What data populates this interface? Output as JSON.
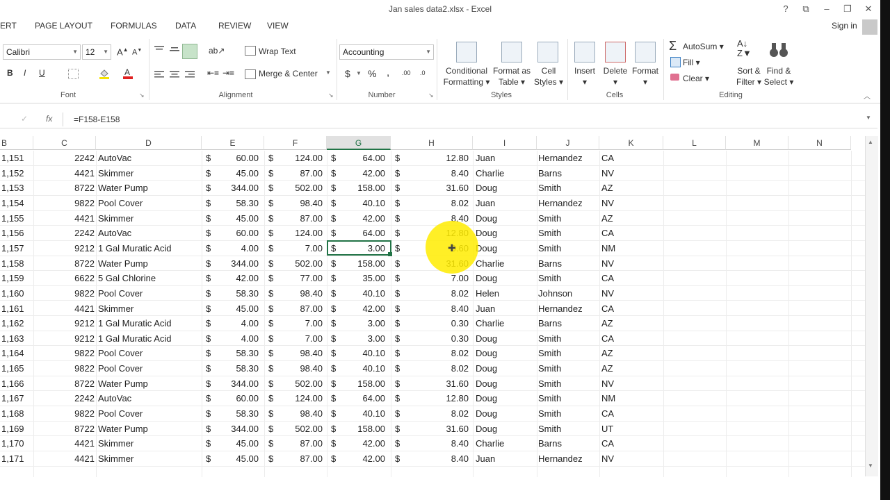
{
  "window": {
    "title": "Jan sales data2.xlsx - Excel",
    "help": "?",
    "ribbon_display": "⧉",
    "minimize": "–",
    "restore": "❐",
    "close": "✕"
  },
  "tabs": [
    "ERT",
    "PAGE LAYOUT",
    "FORMULAS",
    "DATA",
    "REVIEW",
    "VIEW"
  ],
  "signin": "Sign in",
  "font": {
    "name": "Calibri",
    "size": "12",
    "grow": "A",
    "shrink": "A",
    "bold": "B",
    "italic": "I",
    "underline": "U",
    "group_label": "Font"
  },
  "alignment": {
    "wrap_text": "Wrap Text",
    "merge_center": "Merge & Center",
    "group_label": "Alignment"
  },
  "number": {
    "format": "Accounting",
    "currency": "$",
    "percent": "%",
    "comma": ",",
    "inc_dec": ".00",
    "dec_dec": ".0",
    "group_label": "Number"
  },
  "styles": {
    "conditional_1": "Conditional",
    "conditional_2": "Formatting",
    "format_table_1": "Format as",
    "format_table_2": "Table",
    "cell_styles_1": "Cell",
    "cell_styles_2": "Styles",
    "group_label": "Styles"
  },
  "cells": {
    "insert": "Insert",
    "delete": "Delete",
    "format": "Format",
    "group_label": "Cells"
  },
  "editing": {
    "autosum": "AutoSum",
    "fill": "Fill",
    "clear": "Clear",
    "sort_1": "Sort &",
    "sort_2": "Filter",
    "find_1": "Find &",
    "find_2": "Select",
    "group_label": "Editing"
  },
  "formula_bar": {
    "fx": "fx",
    "formula": "=F158-E158"
  },
  "columns": [
    "B",
    "C",
    "D",
    "E",
    "F",
    "G",
    "H",
    "I",
    "J",
    "K",
    "L",
    "M",
    "N"
  ],
  "selected_column": "G",
  "rows": [
    {
      "b": "1,151",
      "c": "2242",
      "d": "AutoVac",
      "e": "60.00",
      "f": "124.00",
      "g": "64.00",
      "h": "12.80",
      "i": "Juan",
      "j": "Hernandez",
      "k": "CA"
    },
    {
      "b": "1,152",
      "c": "4421",
      "d": "Skimmer",
      "e": "45.00",
      "f": "87.00",
      "g": "42.00",
      "h": "8.40",
      "i": "Charlie",
      "j": "Barns",
      "k": "NV"
    },
    {
      "b": "1,153",
      "c": "8722",
      "d": "Water Pump",
      "e": "344.00",
      "f": "502.00",
      "g": "158.00",
      "h": "31.60",
      "i": "Doug",
      "j": "Smith",
      "k": "AZ"
    },
    {
      "b": "1,154",
      "c": "9822",
      "d": "Pool Cover",
      "e": "58.30",
      "f": "98.40",
      "g": "40.10",
      "h": "8.02",
      "i": "Juan",
      "j": "Hernandez",
      "k": "NV"
    },
    {
      "b": "1,155",
      "c": "4421",
      "d": "Skimmer",
      "e": "45.00",
      "f": "87.00",
      "g": "42.00",
      "h": "8.40",
      "i": "Doug",
      "j": "Smith",
      "k": "AZ"
    },
    {
      "b": "1,156",
      "c": "2242",
      "d": "AutoVac",
      "e": "60.00",
      "f": "124.00",
      "g": "64.00",
      "h": "12.80",
      "i": "Doug",
      "j": "Smith",
      "k": "CA"
    },
    {
      "b": "1,157",
      "c": "9212",
      "d": "1 Gal Muratic Acid",
      "e": "4.00",
      "f": "7.00",
      "g": "3.00",
      "h": "0.60",
      "i": "Doug",
      "j": "Smith",
      "k": "NM"
    },
    {
      "b": "1,158",
      "c": "8722",
      "d": "Water Pump",
      "e": "344.00",
      "f": "502.00",
      "g": "158.00",
      "h": "31.60",
      "i": "Charlie",
      "j": "Barns",
      "k": "NV"
    },
    {
      "b": "1,159",
      "c": "6622",
      "d": "5 Gal Chlorine",
      "e": "42.00",
      "f": "77.00",
      "g": "35.00",
      "h": "7.00",
      "i": "Doug",
      "j": "Smith",
      "k": "CA"
    },
    {
      "b": "1,160",
      "c": "9822",
      "d": "Pool Cover",
      "e": "58.30",
      "f": "98.40",
      "g": "40.10",
      "h": "8.02",
      "i": "Helen",
      "j": "Johnson",
      "k": "NV"
    },
    {
      "b": "1,161",
      "c": "4421",
      "d": "Skimmer",
      "e": "45.00",
      "f": "87.00",
      "g": "42.00",
      "h": "8.40",
      "i": "Juan",
      "j": "Hernandez",
      "k": "CA"
    },
    {
      "b": "1,162",
      "c": "9212",
      "d": "1 Gal Muratic Acid",
      "e": "4.00",
      "f": "7.00",
      "g": "3.00",
      "h": "0.30",
      "i": "Charlie",
      "j": "Barns",
      "k": "AZ"
    },
    {
      "b": "1,163",
      "c": "9212",
      "d": "1 Gal Muratic Acid",
      "e": "4.00",
      "f": "7.00",
      "g": "3.00",
      "h": "0.30",
      "i": "Doug",
      "j": "Smith",
      "k": "CA"
    },
    {
      "b": "1,164",
      "c": "9822",
      "d": "Pool Cover",
      "e": "58.30",
      "f": "98.40",
      "g": "40.10",
      "h": "8.02",
      "i": "Doug",
      "j": "Smith",
      "k": "AZ"
    },
    {
      "b": "1,165",
      "c": "9822",
      "d": "Pool Cover",
      "e": "58.30",
      "f": "98.40",
      "g": "40.10",
      "h": "8.02",
      "i": "Doug",
      "j": "Smith",
      "k": "AZ"
    },
    {
      "b": "1,166",
      "c": "8722",
      "d": "Water Pump",
      "e": "344.00",
      "f": "502.00",
      "g": "158.00",
      "h": "31.60",
      "i": "Doug",
      "j": "Smith",
      "k": "NV"
    },
    {
      "b": "1,167",
      "c": "2242",
      "d": "AutoVac",
      "e": "60.00",
      "f": "124.00",
      "g": "64.00",
      "h": "12.80",
      "i": "Doug",
      "j": "Smith",
      "k": "NM"
    },
    {
      "b": "1,168",
      "c": "9822",
      "d": "Pool Cover",
      "e": "58.30",
      "f": "98.40",
      "g": "40.10",
      "h": "8.02",
      "i": "Doug",
      "j": "Smith",
      "k": "CA"
    },
    {
      "b": "1,169",
      "c": "8722",
      "d": "Water Pump",
      "e": "344.00",
      "f": "502.00",
      "g": "158.00",
      "h": "31.60",
      "i": "Doug",
      "j": "Smith",
      "k": "UT"
    },
    {
      "b": "1,170",
      "c": "4421",
      "d": "Skimmer",
      "e": "45.00",
      "f": "87.00",
      "g": "42.00",
      "h": "8.40",
      "i": "Charlie",
      "j": "Barns",
      "k": "CA"
    },
    {
      "b": "1,171",
      "c": "4421",
      "d": "Skimmer",
      "e": "45.00",
      "f": "87.00",
      "g": "42.00",
      "h": "8.40",
      "i": "Juan",
      "j": "Hernandez",
      "k": "NV"
    }
  ],
  "currency_symbol": "$",
  "colors": {
    "accent": "#217346",
    "font_red": "#e02020",
    "highlight": "#ffec00"
  }
}
